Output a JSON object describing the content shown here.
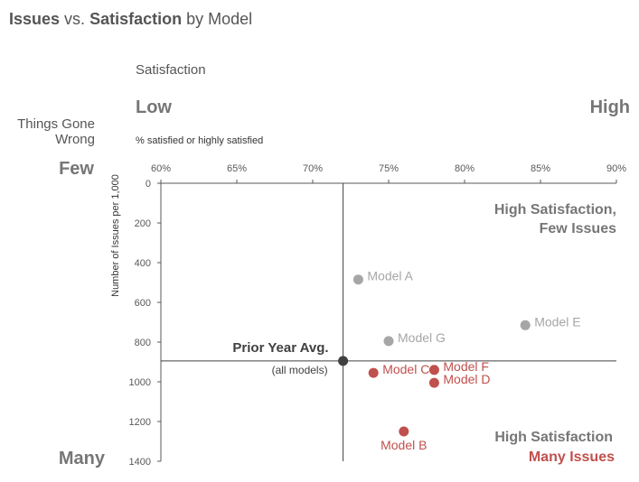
{
  "chart_data": {
    "type": "scatter",
    "title": {
      "part1": "Issues",
      "part2": " vs. ",
      "part3": "Satisfaction",
      "part4": " by Model"
    },
    "top_header": "Satisfaction",
    "top_low": "Low",
    "top_high": "High",
    "xlabel": "% satisfied or highly satisfied",
    "left_header_line1": "Things Gone",
    "left_header_line2": "Wrong",
    "left_top": "Few",
    "left_bottom": "Many",
    "ylabel": "Number of Issues per 1,000",
    "xlim": [
      0.6,
      0.9
    ],
    "ylim": [
      0,
      1400
    ],
    "y_inverted": true,
    "x_ticks": [
      {
        "value": 0.6,
        "label": "60%"
      },
      {
        "value": 0.65,
        "label": "65%"
      },
      {
        "value": 0.7,
        "label": "70%"
      },
      {
        "value": 0.75,
        "label": "75%"
      },
      {
        "value": 0.8,
        "label": "80%"
      },
      {
        "value": 0.85,
        "label": "85%"
      },
      {
        "value": 0.9,
        "label": "90%"
      }
    ],
    "y_ticks": [
      {
        "value": 0,
        "label": "0"
      },
      {
        "value": 200,
        "label": "200"
      },
      {
        "value": 400,
        "label": "400"
      },
      {
        "value": 600,
        "label": "600"
      },
      {
        "value": 800,
        "label": "800"
      },
      {
        "value": 1000,
        "label": "1000"
      },
      {
        "value": 1200,
        "label": "1200"
      },
      {
        "value": 1400,
        "label": "1400"
      }
    ],
    "grid": false,
    "colors": {
      "neutral": "#a6a6a6",
      "problem": "#c0504d",
      "average": "#404040",
      "axis": "#595959",
      "heading": "#767676"
    },
    "points": [
      {
        "name": "Model A",
        "x": 0.73,
        "y": 485,
        "category": "neutral",
        "label_pos": "right"
      },
      {
        "name": "Model B",
        "x": 0.76,
        "y": 1250,
        "category": "problem",
        "label_pos": "below"
      },
      {
        "name": "Model C",
        "x": 0.74,
        "y": 955,
        "category": "problem",
        "label_pos": "right"
      },
      {
        "name": "Model D",
        "x": 0.78,
        "y": 1005,
        "category": "problem",
        "label_pos": "right"
      },
      {
        "name": "Model E",
        "x": 0.84,
        "y": 715,
        "category": "neutral",
        "label_pos": "right"
      },
      {
        "name": "Model F",
        "x": 0.78,
        "y": 940,
        "category": "problem",
        "label_pos": "right"
      },
      {
        "name": "Model G",
        "x": 0.75,
        "y": 795,
        "category": "neutral",
        "label_pos": "right"
      }
    ],
    "average": {
      "label": "Prior Year Avg.",
      "sublabel": "(all models)",
      "x": 0.72,
      "y": 895
    },
    "quadrant_top_right": {
      "line1": "High Satisfaction,",
      "line2": "Few Issues"
    },
    "quadrant_bottom_right": {
      "line1": "High Satisfaction",
      "line2": "Many Issues"
    }
  }
}
